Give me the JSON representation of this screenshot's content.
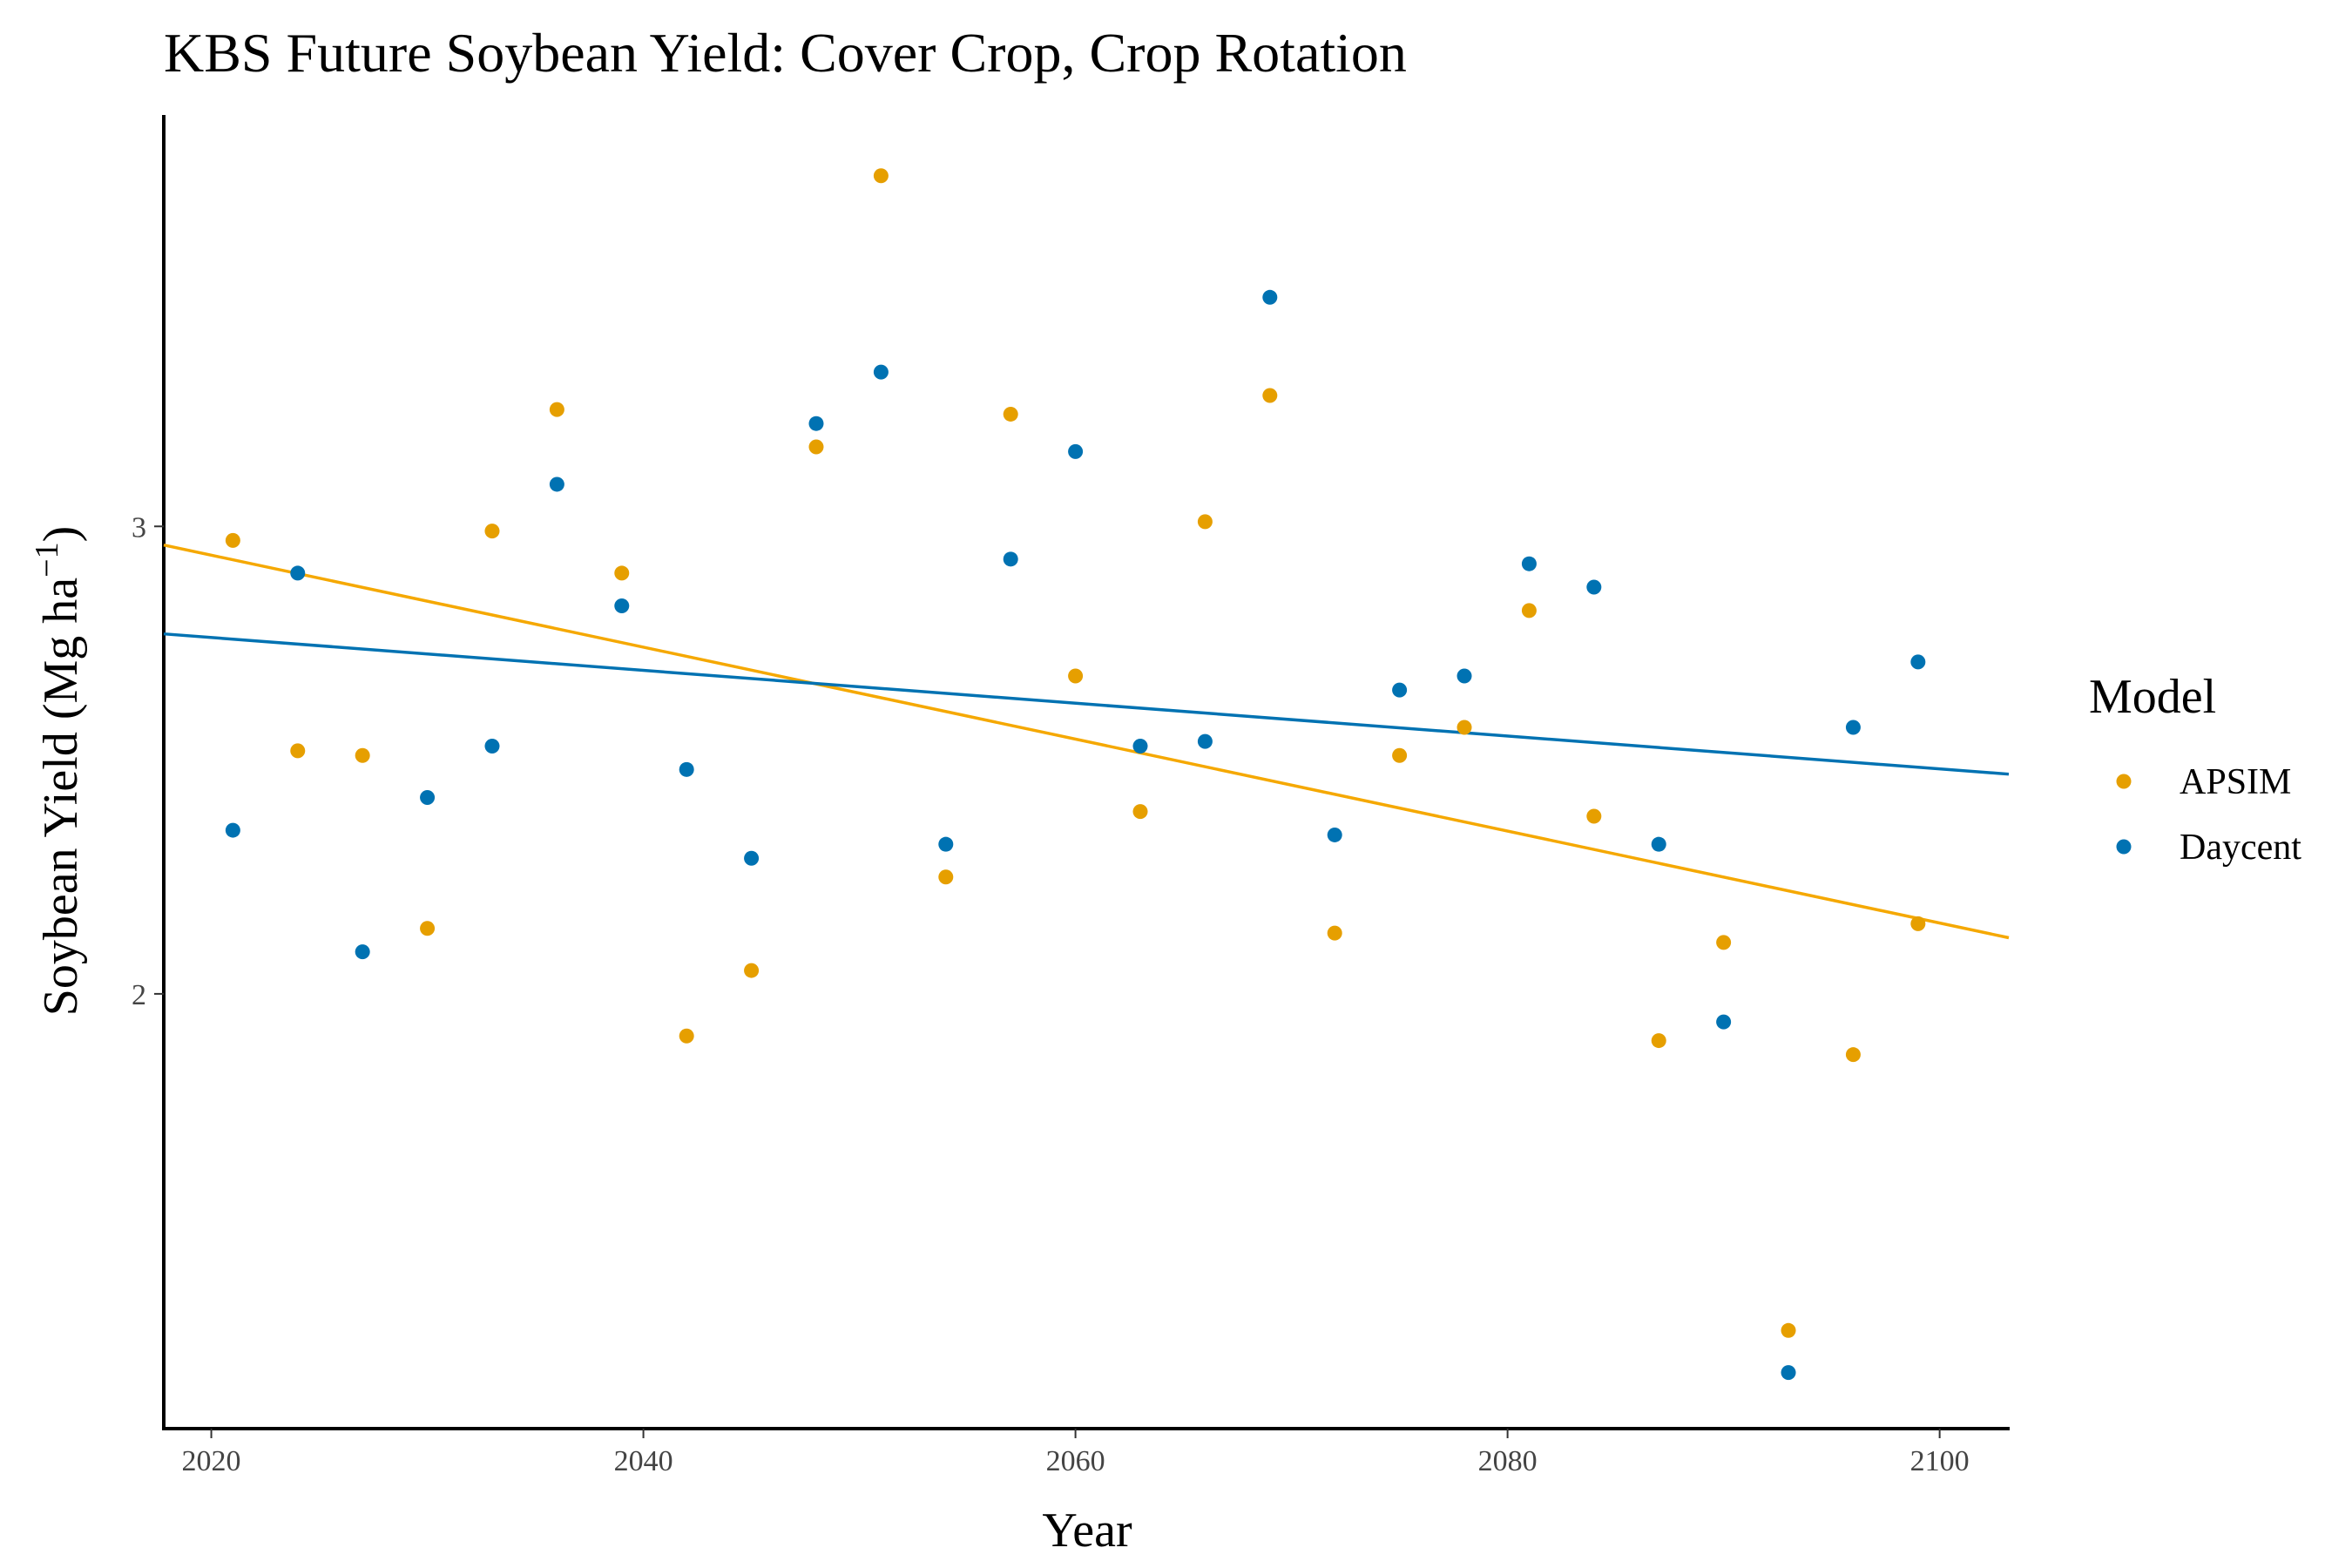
{
  "chart_data": {
    "type": "scatter",
    "title": "KBS Future Soybean Yield:  Cover Crop, Crop Rotation",
    "xlabel": "Year",
    "ylabel": "Soybean Yield (Mg ha",
    "ylabel_sup": "−1",
    "ylabel_close": ")",
    "xlim": [
      2017.8,
      2103.2
    ],
    "ylim": [
      1.07,
      3.88
    ],
    "x_ticks": [
      2020,
      2040,
      2060,
      2080,
      2100
    ],
    "x_tick_labels": [
      "2020",
      "2040",
      "2060",
      "2080",
      "2100"
    ],
    "y_ticks": [
      2,
      3
    ],
    "y_tick_labels": [
      "2",
      "3"
    ],
    "grid": false,
    "legend": {
      "title": "Model",
      "placement": "right"
    },
    "series": [
      {
        "name": "APSIM",
        "color": "#E69F00",
        "trend_color": "#F5A800",
        "x": [
          2021,
          2024,
          2027,
          2030,
          2033,
          2036,
          2039,
          2042,
          2045,
          2048,
          2051,
          2054,
          2057,
          2060,
          2063,
          2066,
          2069,
          2072,
          2075,
          2078,
          2081,
          2084,
          2087,
          2090,
          2093,
          2096,
          2099
        ],
        "y": [
          2.97,
          2.52,
          2.51,
          2.14,
          2.99,
          3.25,
          2.9,
          1.91,
          2.05,
          3.17,
          3.75,
          2.25,
          3.24,
          2.68,
          2.39,
          3.01,
          3.28,
          2.13,
          2.51,
          2.57,
          2.82,
          2.38,
          1.9,
          2.11,
          1.28,
          1.87,
          2.15
        ],
        "trend": {
          "x": [
            2017.8,
            2103.2
          ],
          "y": [
            2.96,
            2.12
          ]
        }
      },
      {
        "name": "Daycent",
        "color": "#0072B2",
        "trend_color": "#0072B2",
        "x": [
          2021,
          2024,
          2027,
          2030,
          2033,
          2036,
          2039,
          2042,
          2045,
          2048,
          2051,
          2054,
          2057,
          2060,
          2063,
          2066,
          2069,
          2072,
          2075,
          2078,
          2081,
          2084,
          2087,
          2090,
          2093,
          2096,
          2099
        ],
        "y": [
          2.35,
          2.9,
          2.09,
          2.42,
          2.53,
          3.09,
          2.83,
          2.48,
          2.29,
          3.22,
          3.33,
          2.32,
          2.93,
          3.16,
          2.53,
          2.54,
          3.49,
          2.34,
          2.65,
          2.68,
          2.92,
          2.87,
          2.32,
          1.94,
          1.19,
          2.57,
          2.71
        ],
        "trend": {
          "x": [
            2017.8,
            2103.2
          ],
          "y": [
            2.77,
            2.47
          ]
        }
      }
    ]
  }
}
